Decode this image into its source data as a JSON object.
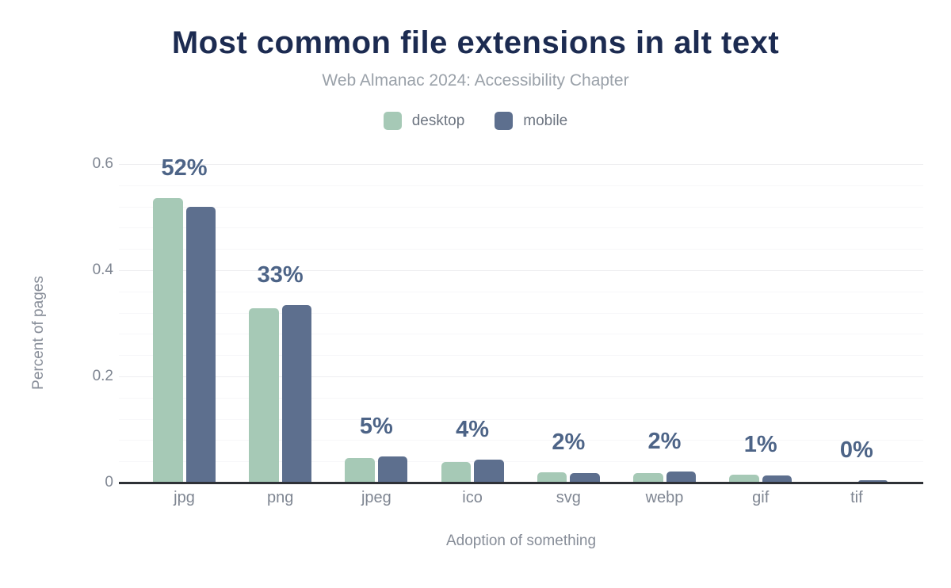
{
  "chart_data": {
    "type": "bar",
    "title": "Most common file extensions in alt text",
    "subtitle": "Web Almanac 2024: Accessibility Chapter",
    "xlabel": "Adoption of something",
    "ylabel": "Percent of pages",
    "categories": [
      "jpg",
      "png",
      "jpeg",
      "ico",
      "svg",
      "webp",
      "gif",
      "tif"
    ],
    "series": [
      {
        "name": "desktop",
        "color": "#a6c9b6",
        "values": [
          0.536,
          0.329,
          0.046,
          0.039,
          0.019,
          0.018,
          0.015,
          0.001
        ]
      },
      {
        "name": "mobile",
        "color": "#5d6f8e",
        "values": [
          0.52,
          0.335,
          0.049,
          0.044,
          0.018,
          0.021,
          0.013,
          0.005
        ]
      }
    ],
    "bar_labels": [
      "52%",
      "33%",
      "5%",
      "4%",
      "2%",
      "2%",
      "1%",
      "0%"
    ],
    "yticks": [
      {
        "value": 0.0,
        "label": "0"
      },
      {
        "value": 0.2,
        "label": "0.2"
      },
      {
        "value": 0.4,
        "label": "0.4"
      },
      {
        "value": 0.6,
        "label": "0.6"
      }
    ],
    "ylim": [
      0,
      0.6
    ],
    "grid": {
      "orientation": "horizontal",
      "minor_step": 0.04,
      "major_step": 0.2
    },
    "legend_position": "top",
    "colors": {
      "title": "#1c2b51",
      "subtitle": "#9aa1a9",
      "axis_text": "#7f8692",
      "bar_label": "#4d6487",
      "axis_line": "#2e3136",
      "grid_minor": "#f7f7f9",
      "grid_major": "#ededf0",
      "background": "#ffffff"
    }
  }
}
